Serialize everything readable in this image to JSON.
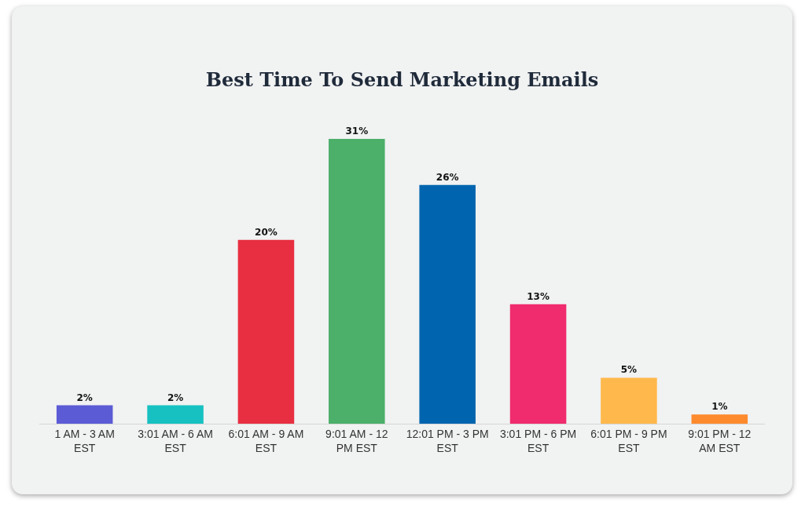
{
  "chart_data": {
    "type": "bar",
    "title": "Best Time To Send Marketing Emails",
    "categories": [
      "1 AM - 3 AM\nEST",
      "3:01 AM - 6 AM\nEST",
      "6:01 AM - 9 AM\nEST",
      "9:01 AM - 12\nPM EST",
      "12:01 PM - 3 PM\nEST",
      "3:01 PM - 6 PM\nEST",
      "6:01 PM - 9 PM\nEST",
      "9:01 PM - 12\nAM EST"
    ],
    "values": [
      2,
      2,
      20,
      31,
      26,
      13,
      5,
      1
    ],
    "colors": [
      "#5b5bd6",
      "#17c1c1",
      "#e82e41",
      "#4caf6a",
      "#0065ae",
      "#f02b6e",
      "#ffb84b",
      "#fd8a2c"
    ],
    "value_labels": [
      "2%",
      "2%",
      "20%",
      "31%",
      "26%",
      "13%",
      "5%",
      "1%"
    ]
  }
}
